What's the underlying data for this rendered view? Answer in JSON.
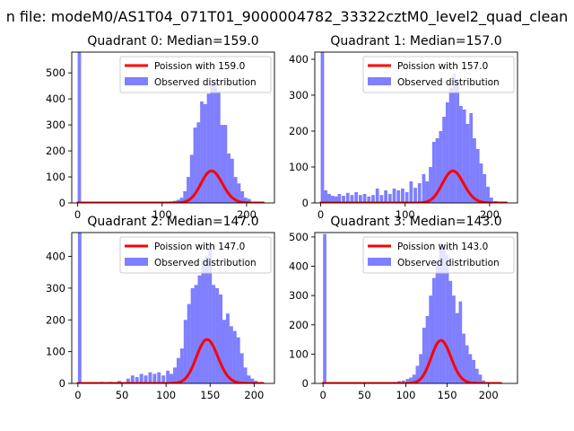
{
  "figure_title": "n file: modeM0/AS1T04_071T01_9000004782_33322cztM0_level2_quad_clean",
  "colors": {
    "poisson": "#ff0000",
    "observed": "#0000ff",
    "observed_alpha": 0.5,
    "axes": "#000000",
    "background": "#ffffff"
  },
  "chart_data": [
    {
      "type": "bar",
      "title": "Quadrant 0: Median=159.0",
      "legend": [
        "Poission with 159.0",
        "Observed distribution"
      ],
      "legend_position": "top-right",
      "xlim": [
        -7,
        233
      ],
      "ylim": [
        0,
        580
      ],
      "xticks": [
        0,
        100,
        200
      ],
      "xtick_labels": [
        "0",
        "100",
        "200"
      ],
      "yticks": [
        0,
        100,
        200,
        300,
        400,
        500
      ],
      "ytick_labels": [
        "0",
        "100",
        "200",
        "300",
        "400",
        "500"
      ],
      "poisson_mean": 159.0,
      "poisson_total": 3900,
      "curve_range": [
        0,
        220
      ],
      "bins": [
        0,
        93,
        97,
        101,
        105,
        109,
        113,
        117,
        121,
        125,
        129,
        133,
        137,
        141,
        145,
        149,
        153,
        157,
        161,
        165,
        169,
        173,
        177,
        181,
        185,
        189,
        193,
        197,
        201,
        205,
        209,
        213
      ],
      "bin_width": 4,
      "counts": [
        580,
        2,
        3,
        3,
        5,
        6,
        8,
        12,
        20,
        45,
        100,
        185,
        290,
        310,
        390,
        380,
        420,
        460,
        470,
        430,
        300,
        300,
        190,
        170,
        100,
        75,
        45,
        20,
        15,
        5,
        3,
        0
      ]
    },
    {
      "type": "bar",
      "title": "Quadrant 1: Median=157.0",
      "legend": [
        "Poission with 157.0",
        "Observed distribution"
      ],
      "legend_position": "top-right",
      "xlim": [
        -7,
        233
      ],
      "ylim": [
        0,
        420
      ],
      "xticks": [
        0,
        100,
        200
      ],
      "xtick_labels": [
        "0",
        "100",
        "200"
      ],
      "yticks": [
        0,
        100,
        200,
        300,
        400
      ],
      "ytick_labels": [
        "0",
        "100",
        "200",
        "300",
        "400"
      ],
      "poisson_mean": 157.0,
      "poisson_total": 2800,
      "curve_range": [
        0,
        220
      ],
      "bins": [
        0,
        4,
        8,
        12,
        16,
        20,
        25,
        30,
        35,
        40,
        45,
        50,
        55,
        60,
        65,
        70,
        75,
        80,
        85,
        90,
        95,
        100,
        105,
        110,
        115,
        120,
        124,
        128,
        132,
        136,
        140,
        144,
        148,
        152,
        156,
        160,
        164,
        168,
        172,
        176,
        180,
        184,
        188,
        192,
        196,
        200,
        205
      ],
      "bin_width": 4,
      "counts": [
        420,
        35,
        25,
        20,
        18,
        25,
        20,
        28,
        22,
        30,
        22,
        25,
        18,
        22,
        40,
        22,
        35,
        25,
        40,
        35,
        40,
        30,
        60,
        42,
        55,
        80,
        60,
        100,
        170,
        180,
        200,
        240,
        280,
        320,
        360,
        340,
        270,
        260,
        220,
        250,
        180,
        150,
        110,
        80,
        45,
        15,
        5
      ]
    },
    {
      "type": "bar",
      "title": "Quadrant 2: Median=147.0",
      "legend": [
        "Poission with 147.0",
        "Observed distribution"
      ],
      "legend_position": "top-right",
      "xlim": [
        -7,
        223
      ],
      "ylim": [
        0,
        475
      ],
      "xticks": [
        0,
        50,
        100,
        150,
        200
      ],
      "xtick_labels": [
        "0",
        "50",
        "100",
        "150",
        "200"
      ],
      "yticks": [
        0,
        100,
        200,
        300,
        400
      ],
      "ytick_labels": [
        "0",
        "100",
        "200",
        "300",
        "400"
      ],
      "poisson_mean": 147.0,
      "poisson_total": 4200,
      "curve_range": [
        0,
        210
      ],
      "bins": [
        0,
        15,
        25,
        35,
        45,
        55,
        60,
        65,
        70,
        75,
        80,
        85,
        90,
        95,
        100,
        104,
        108,
        112,
        116,
        120,
        124,
        128,
        132,
        136,
        140,
        144,
        148,
        152,
        156,
        160,
        164,
        168,
        172,
        176,
        180,
        184,
        188,
        192,
        196,
        200,
        204
      ],
      "bin_width": 4,
      "counts": [
        475,
        3,
        5,
        5,
        8,
        15,
        25,
        20,
        30,
        25,
        35,
        30,
        35,
        25,
        40,
        30,
        50,
        80,
        110,
        200,
        250,
        300,
        310,
        340,
        390,
        400,
        440,
        310,
        300,
        280,
        200,
        220,
        180,
        165,
        145,
        95,
        50,
        25,
        15,
        8,
        3
      ]
    },
    {
      "type": "bar",
      "title": "Quadrant 3: Median=143.0",
      "legend": [
        "Poission with 143.0",
        "Observed distribution"
      ],
      "legend_position": "top-right",
      "xlim": [
        -10,
        235
      ],
      "ylim": [
        0,
        515
      ],
      "xticks": [
        0,
        50,
        100,
        150,
        200
      ],
      "xtick_labels": [
        "0",
        "50",
        "100",
        "150",
        "200"
      ],
      "yticks": [
        0,
        100,
        200,
        300,
        400,
        500
      ],
      "ytick_labels": [
        "0",
        "100",
        "200",
        "300",
        "400",
        "500"
      ],
      "poisson_mean": 143.0,
      "poisson_total": 4400,
      "curve_range": [
        0,
        215
      ],
      "bins": [
        0,
        85,
        90,
        95,
        100,
        104,
        108,
        112,
        116,
        120,
        124,
        128,
        132,
        136,
        140,
        144,
        148,
        152,
        156,
        160,
        164,
        168,
        172,
        176,
        180,
        184,
        188,
        192
      ],
      "bin_width": 4,
      "counts": [
        510,
        5,
        8,
        10,
        15,
        20,
        30,
        60,
        100,
        190,
        230,
        300,
        360,
        420,
        480,
        470,
        440,
        350,
        300,
        240,
        280,
        170,
        130,
        100,
        80,
        50,
        30,
        10
      ]
    }
  ]
}
